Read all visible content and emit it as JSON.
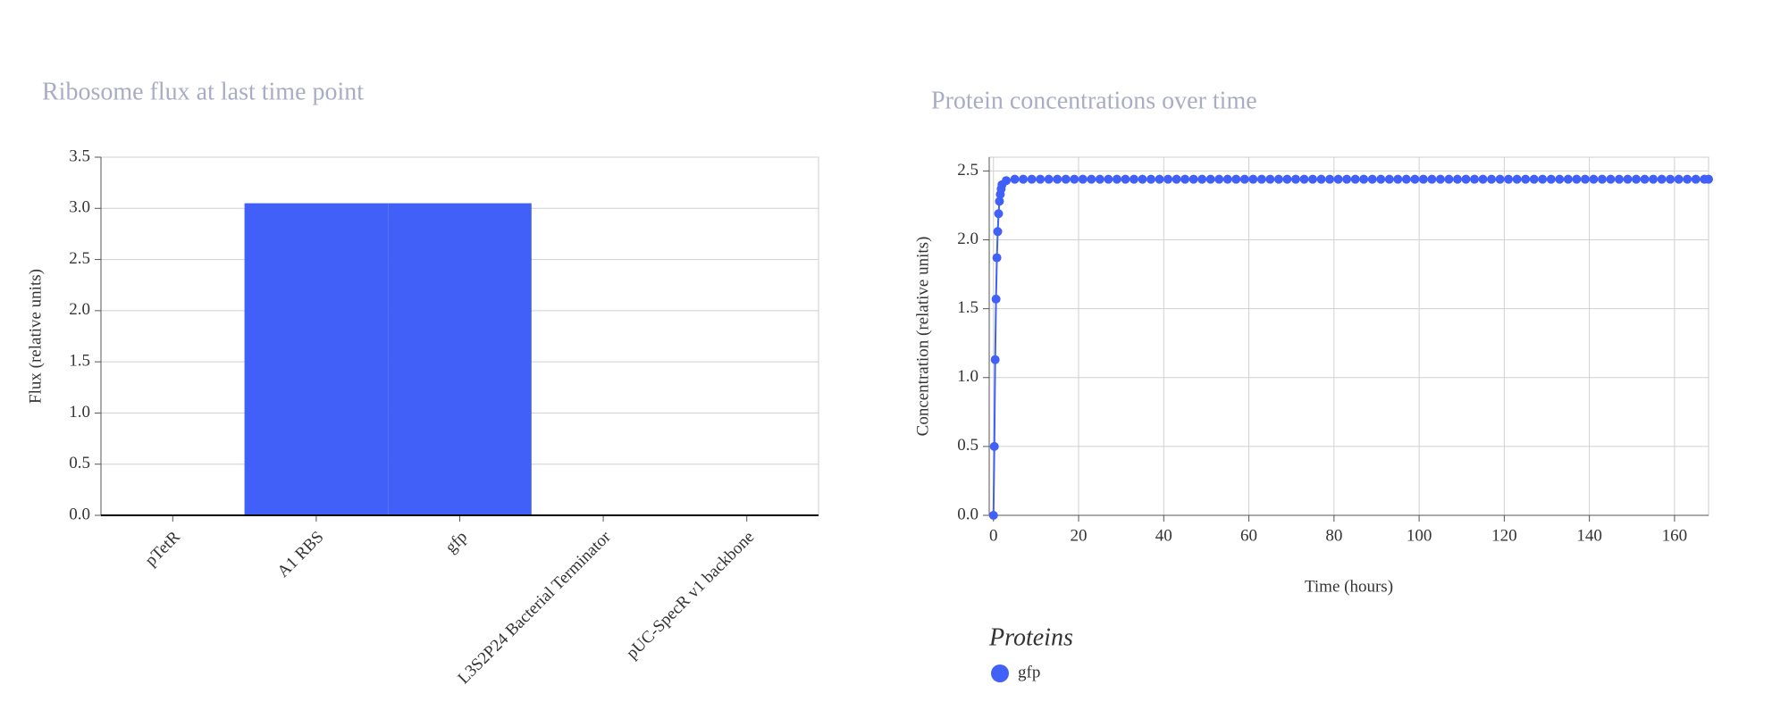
{
  "chart_data": [
    {
      "type": "bar",
      "title": "Ribosome flux at last time point",
      "y_label": "Flux (relative units)",
      "categories": [
        "pTetR",
        "A1 RBS",
        "gfp",
        "L3S2P24 Bacterial Terminator",
        "pUC-SpecR v1 backbone"
      ],
      "values": [
        0,
        3.05,
        3.05,
        0,
        0
      ],
      "color": "#4160f8",
      "ylim": [
        0,
        3.5
      ],
      "yticks": [
        {
          "value": 0,
          "label": "0.0"
        },
        {
          "value": 0.5,
          "label": "0.5"
        },
        {
          "value": 1,
          "label": "1.0"
        },
        {
          "value": 1.5,
          "label": "1.5"
        },
        {
          "value": 2,
          "label": "2.0"
        },
        {
          "value": 2.5,
          "label": "2.5"
        },
        {
          "value": 3,
          "label": "3.0"
        },
        {
          "value": 3.5,
          "label": "3.5"
        }
      ],
      "grid": "y"
    },
    {
      "type": "scatter",
      "title": "Protein concentrations over time",
      "x_label": "Time (hours)",
      "y_label": "Concentration (relative units)",
      "legend_title": "Proteins",
      "x": [
        0,
        0.2,
        0.4,
        0.6,
        0.8,
        1,
        1.2,
        1.4,
        1.6,
        1.8,
        2,
        3,
        5,
        7,
        9,
        11,
        13,
        15,
        17,
        19,
        21,
        23,
        25,
        27,
        29,
        31,
        33,
        35,
        37,
        39,
        41,
        43,
        45,
        47,
        49,
        51,
        53,
        55,
        57,
        59,
        61,
        63,
        65,
        67,
        69,
        71,
        73,
        75,
        77,
        79,
        81,
        83,
        85,
        87,
        89,
        91,
        93,
        95,
        97,
        99,
        101,
        103,
        105,
        107,
        109,
        111,
        113,
        115,
        117,
        119,
        121,
        123,
        125,
        127,
        129,
        131,
        133,
        135,
        137,
        139,
        141,
        143,
        145,
        147,
        149,
        151,
        153,
        155,
        157,
        159,
        161,
        163,
        165,
        167,
        168
      ],
      "series": [
        {
          "name": "gfp",
          "color": "#4160f8",
          "values": [
            0,
            0.5,
            1.13,
            1.57,
            1.87,
            2.06,
            2.19,
            2.28,
            2.33,
            2.37,
            2.4,
            2.43,
            2.44,
            2.44,
            2.44,
            2.44,
            2.44,
            2.44,
            2.44,
            2.44,
            2.44,
            2.44,
            2.44,
            2.44,
            2.44,
            2.44,
            2.44,
            2.44,
            2.44,
            2.44,
            2.44,
            2.44,
            2.44,
            2.44,
            2.44,
            2.44,
            2.44,
            2.44,
            2.44,
            2.44,
            2.44,
            2.44,
            2.44,
            2.44,
            2.44,
            2.44,
            2.44,
            2.44,
            2.44,
            2.44,
            2.44,
            2.44,
            2.44,
            2.44,
            2.44,
            2.44,
            2.44,
            2.44,
            2.44,
            2.44,
            2.44,
            2.44,
            2.44,
            2.44,
            2.44,
            2.44,
            2.44,
            2.44,
            2.44,
            2.44,
            2.44,
            2.44,
            2.44,
            2.44,
            2.44,
            2.44,
            2.44,
            2.44,
            2.44,
            2.44,
            2.44,
            2.44,
            2.44,
            2.44,
            2.44,
            2.44,
            2.44,
            2.44,
            2.44,
            2.44,
            2.44,
            2.44,
            2.44,
            2.44,
            2.44
          ]
        }
      ],
      "xlim": [
        -1,
        168
      ],
      "xticks": [
        0,
        20,
        40,
        60,
        80,
        100,
        120,
        140,
        160
      ],
      "ylim": [
        0,
        2.6
      ],
      "yticks": [
        {
          "value": 0,
          "label": "0.0"
        },
        {
          "value": 0.5,
          "label": "0.5"
        },
        {
          "value": 1,
          "label": "1.0"
        },
        {
          "value": 1.5,
          "label": "1.5"
        },
        {
          "value": 2,
          "label": "2.0"
        },
        {
          "value": 2.5,
          "label": "2.5"
        }
      ],
      "grid": "xy"
    }
  ]
}
